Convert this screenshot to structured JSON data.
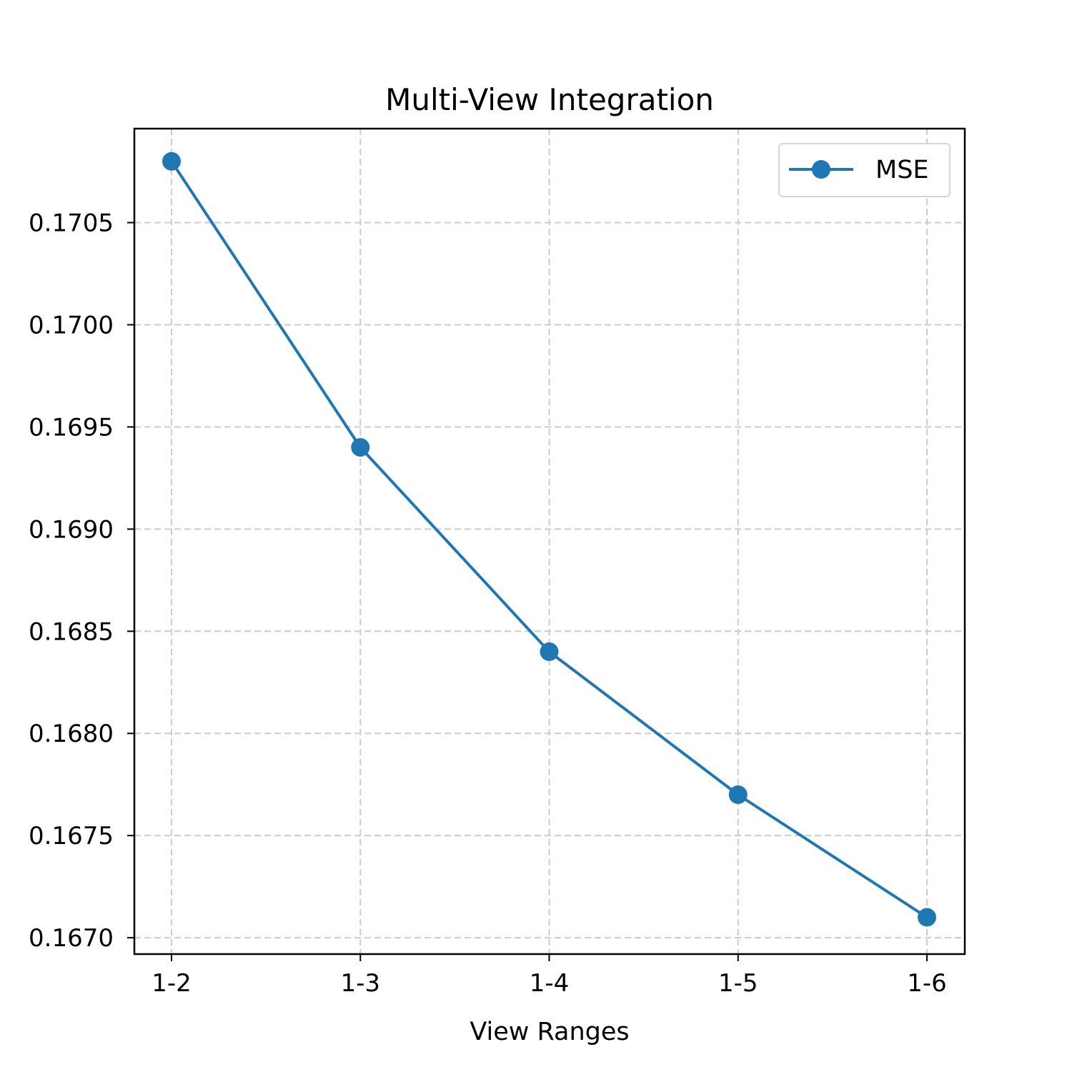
{
  "chart_data": {
    "type": "line",
    "title": "Multi-View Integration",
    "xlabel": "View Ranges",
    "ylabel": "",
    "categories": [
      "1-2",
      "1-3",
      "1-4",
      "1-5",
      "1-6"
    ],
    "series": [
      {
        "name": "MSE",
        "values": [
          0.1708,
          0.1694,
          0.1684,
          0.1677,
          0.1671
        ],
        "color": "#1f77b4",
        "marker": "circle"
      }
    ],
    "ylim": [
      0.16692,
      0.17096
    ],
    "yticks": [
      0.167,
      0.1675,
      0.168,
      0.1685,
      0.169,
      0.1695,
      0.17,
      0.1705
    ],
    "ytick_labels": [
      "0.1670",
      "0.1675",
      "0.1680",
      "0.1685",
      "0.1690",
      "0.1695",
      "0.1700",
      "0.1705"
    ],
    "grid": true,
    "grid_style": "dashed",
    "legend": {
      "position": "top-right",
      "entries": [
        "MSE"
      ]
    }
  }
}
